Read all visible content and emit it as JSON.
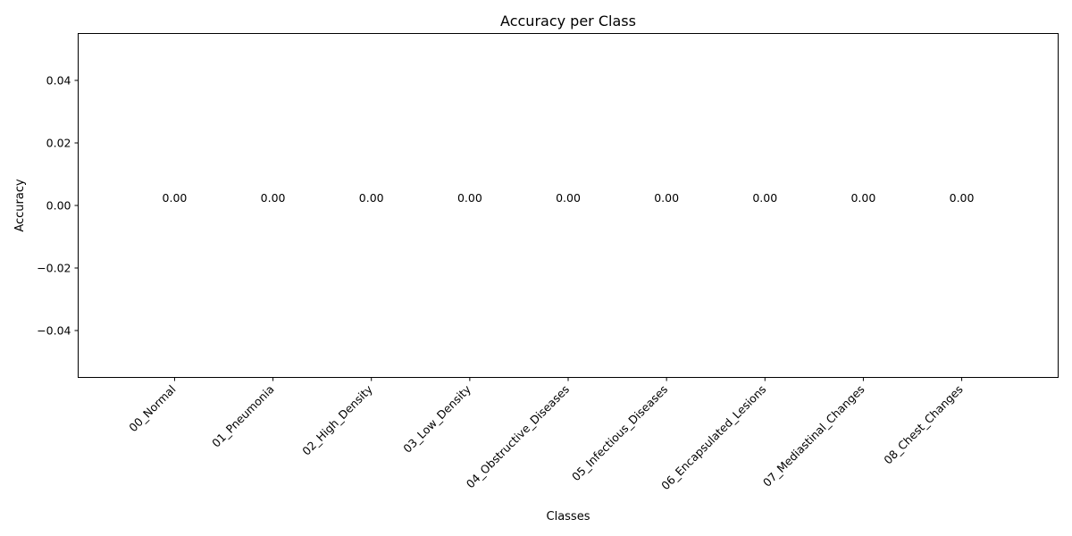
{
  "chart_data": {
    "type": "bar",
    "title": "Accuracy per Class",
    "xlabel": "Classes",
    "ylabel": "Accuracy",
    "categories": [
      "00_Normal",
      "01_Pneumonia",
      "02_High_Density",
      "03_Low_Density",
      "04_Obstructive_Diseases",
      "05_Infectious_Diseases",
      "06_Encapsulated_Lesions",
      "07_Mediastinal_Changes",
      "08_Chest_Changes"
    ],
    "values": [
      0,
      0,
      0,
      0,
      0,
      0,
      0,
      0,
      0
    ],
    "data_labels": [
      "0.00",
      "0.00",
      "0.00",
      "0.00",
      "0.00",
      "0.00",
      "0.00",
      "0.00",
      "0.00"
    ],
    "ylim": [
      -0.055,
      0.055
    ],
    "yticks": [
      -0.04,
      -0.02,
      0.0,
      0.02,
      0.04
    ],
    "ytick_labels": [
      "−0.04",
      "−0.02",
      "0.00",
      "0.02",
      "0.04"
    ],
    "grid": false,
    "legend": "none"
  }
}
